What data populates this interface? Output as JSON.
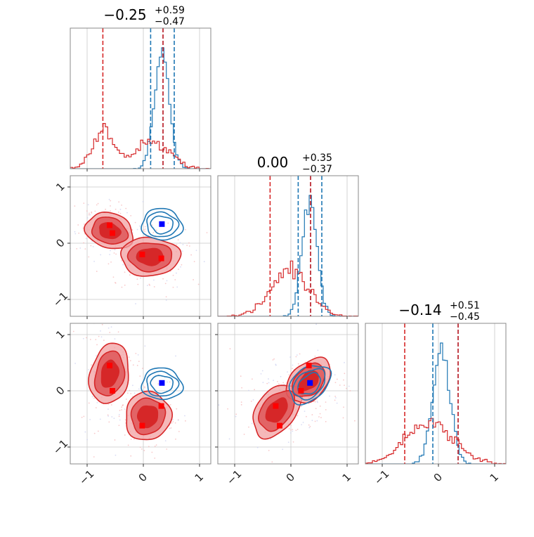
{
  "chart_data": {
    "type": "corner",
    "grid": true,
    "axis_range": [
      -1.3,
      1.2
    ],
    "ticks": [
      -1,
      0,
      1
    ],
    "tick_labels": [
      "−1",
      "0",
      "1"
    ],
    "colors": {
      "red": "#d62728",
      "blue": "#1f77b4",
      "red_light": "#f2a0a2",
      "red_mid": "#e05b5d",
      "marker_red": "#ff0000",
      "marker_blue": "#0000ff"
    },
    "titles": [
      {
        "median": "−0.25",
        "plus": "+0.59",
        "minus": "−0.47"
      },
      {
        "median": "0.00",
        "plus": "+0.35",
        "minus": "−0.37"
      },
      {
        "median": "−0.14",
        "plus": "+0.51",
        "minus": "−0.45"
      }
    ],
    "diagonal": [
      {
        "red_quantiles": [
          -0.72,
          0.35
        ],
        "blue_quantiles": [
          0.13,
          0.35,
          0.55
        ]
      },
      {
        "red_quantiles": [
          -0.37,
          0.35
        ],
        "blue_quantiles": [
          0.13,
          0.35,
          0.55
        ]
      },
      {
        "red_quantiles": [
          -0.6,
          0.35
        ],
        "blue_quantiles": [
          -0.1,
          0.35
        ]
      }
    ],
    "red_modes": [
      {
        "x": -0.6,
        "y": 0.32,
        "z": 0.45
      },
      {
        "x": -0.55,
        "y": 0.18,
        "z": 0.0
      },
      {
        "x": -0.02,
        "y": -0.2,
        "z": -0.62
      },
      {
        "x": 0.32,
        "y": -0.27,
        "z": -0.27
      }
    ],
    "blue_point": {
      "x": 0.33,
      "y": 0.34,
      "z": 0.14
    },
    "blue_center": {
      "x": 0.33,
      "y": 0.33,
      "z": 0.12
    }
  }
}
